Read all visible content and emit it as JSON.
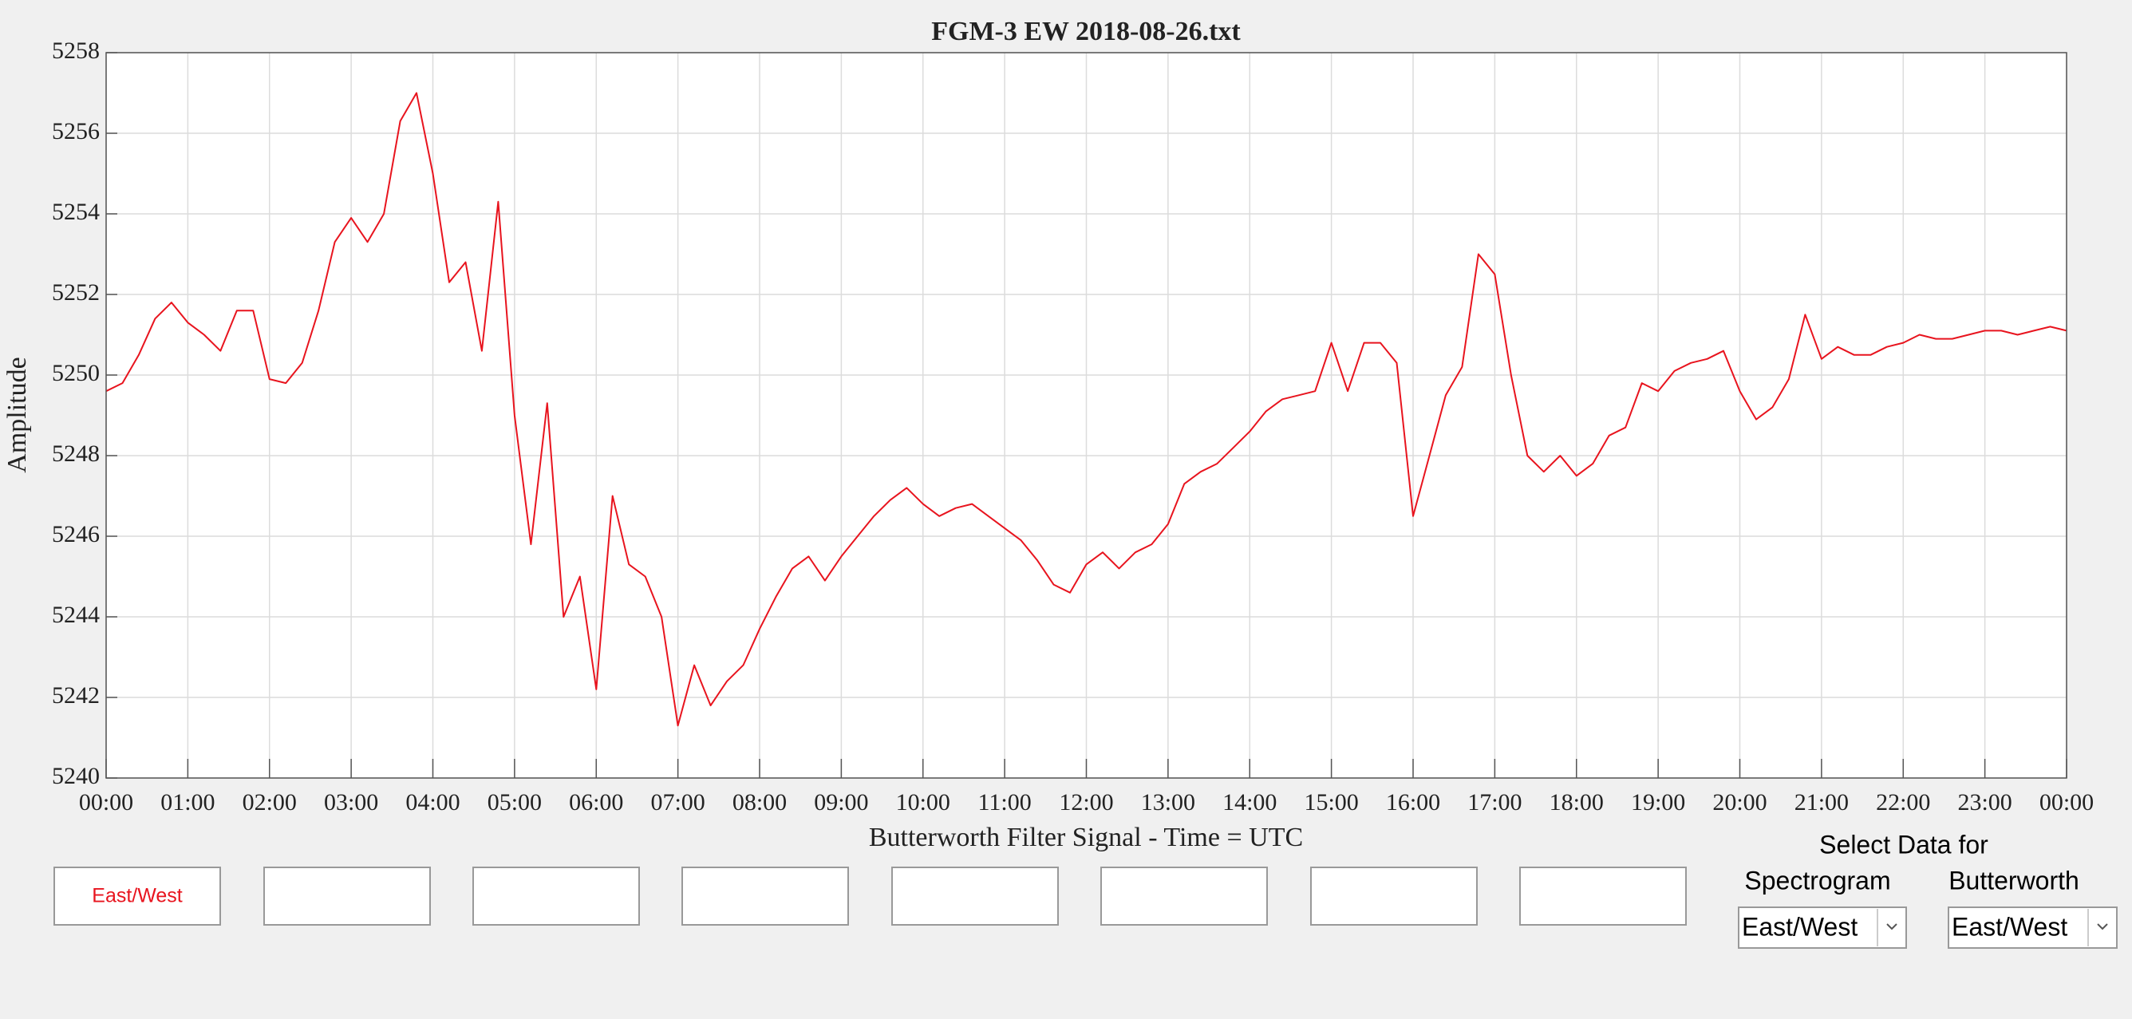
{
  "chart_data": {
    "type": "line",
    "title": "FGM-3 EW 2018-08-26.txt",
    "xlabel": "Butterworth Filter Signal - Time = UTC",
    "ylabel": "Amplitude",
    "x": [
      0,
      0.2,
      0.4,
      0.6,
      0.8,
      1,
      1.2,
      1.4,
      1.6,
      1.8,
      2,
      2.2,
      2.4,
      2.6,
      2.8,
      3,
      3.2,
      3.4,
      3.6,
      3.8,
      4,
      4.2,
      4.4,
      4.6,
      4.8,
      5,
      5.2,
      5.4,
      5.6,
      5.8,
      6,
      6.2,
      6.4,
      6.6,
      6.8,
      7,
      7.2,
      7.4,
      7.6,
      7.8,
      8,
      8.2,
      8.4,
      8.6,
      8.8,
      9,
      9.2,
      9.4,
      9.6,
      9.8,
      10,
      10.2,
      10.4,
      10.6,
      10.8,
      11,
      11.2,
      11.4,
      11.6,
      11.8,
      12,
      12.2,
      12.4,
      12.6,
      12.8,
      13,
      13.2,
      13.4,
      13.6,
      13.8,
      14,
      14.2,
      14.4,
      14.6,
      14.8,
      15,
      15.2,
      15.4,
      15.6,
      15.8,
      16,
      16.2,
      16.4,
      16.6,
      16.8,
      17,
      17.2,
      17.4,
      17.6,
      17.8,
      18,
      18.2,
      18.4,
      18.6,
      18.8,
      19,
      19.2,
      19.4,
      19.6,
      19.8,
      20,
      20.2,
      20.4,
      20.6,
      20.8,
      21,
      21.2,
      21.4,
      21.6,
      21.8,
      22,
      22.2,
      22.4,
      22.6,
      22.8,
      23,
      23.2,
      23.4,
      23.6,
      23.8,
      24
    ],
    "series": [
      {
        "color": "#e8141e",
        "values": [
          5249.6,
          5249.8,
          5250.5,
          5251.4,
          5251.8,
          5251.3,
          5251.0,
          5250.6,
          5251.6,
          5251.6,
          5249.9,
          5249.8,
          5250.3,
          5251.6,
          5253.3,
          5253.9,
          5253.3,
          5254.0,
          5256.3,
          5257.0,
          5255.0,
          5252.3,
          5252.8,
          5250.6,
          5254.3,
          5249.0,
          5245.8,
          5249.3,
          5244.0,
          5245.0,
          5242.2,
          5247.0,
          5245.3,
          5245.0,
          5244.0,
          5241.3,
          5242.8,
          5241.8,
          5242.4,
          5242.8,
          5243.7,
          5244.5,
          5245.2,
          5245.5,
          5244.9,
          5245.5,
          5246.0,
          5246.5,
          5246.9,
          5247.2,
          5246.8,
          5246.5,
          5246.7,
          5246.8,
          5246.5,
          5246.2,
          5245.9,
          5245.4,
          5244.8,
          5244.6,
          5245.3,
          5245.6,
          5245.2,
          5245.6,
          5245.8,
          5246.3,
          5247.3,
          5247.6,
          5247.8,
          5248.2,
          5248.6,
          5249.1,
          5249.4,
          5249.5,
          5249.6,
          5250.8,
          5249.6,
          5250.8,
          5250.8,
          5250.3,
          5246.5,
          5248.0,
          5249.5,
          5250.2,
          5253.0,
          5252.5,
          5250.0,
          5248.0,
          5247.6,
          5248.0,
          5247.5,
          5247.8,
          5248.5,
          5248.7,
          5249.8,
          5249.6,
          5250.1,
          5250.3,
          5250.4,
          5250.6,
          5249.6,
          5248.9,
          5249.2,
          5249.9,
          5251.5,
          5250.4,
          5250.7,
          5250.5,
          5250.5,
          5250.7,
          5250.8,
          5251.0,
          5250.9,
          5250.9,
          5251.0,
          5251.1,
          5251.1,
          5251.0,
          5251.1,
          5251.2,
          5251.1
        ]
      }
    ],
    "xlim": [
      0,
      24
    ],
    "xticks": [
      {
        "value": 0,
        "label": "00:00"
      },
      {
        "value": 1,
        "label": "01:00"
      },
      {
        "value": 2,
        "label": "02:00"
      },
      {
        "value": 3,
        "label": "03:00"
      },
      {
        "value": 4,
        "label": "04:00"
      },
      {
        "value": 5,
        "label": "05:00"
      },
      {
        "value": 6,
        "label": "06:00"
      },
      {
        "value": 7,
        "label": "07:00"
      },
      {
        "value": 8,
        "label": "08:00"
      },
      {
        "value": 9,
        "label": "09:00"
      },
      {
        "value": 10,
        "label": "10:00"
      },
      {
        "value": 11,
        "label": "11:00"
      },
      {
        "value": 12,
        "label": "12:00"
      },
      {
        "value": 13,
        "label": "13:00"
      },
      {
        "value": 14,
        "label": "14:00"
      },
      {
        "value": 15,
        "label": "15:00"
      },
      {
        "value": 16,
        "label": "16:00"
      },
      {
        "value": 17,
        "label": "17:00"
      },
      {
        "value": 18,
        "label": "18:00"
      },
      {
        "value": 19,
        "label": "19:00"
      },
      {
        "value": 20,
        "label": "20:00"
      },
      {
        "value": 21,
        "label": "21:00"
      },
      {
        "value": 22,
        "label": "22:00"
      },
      {
        "value": 23,
        "label": "23:00"
      },
      {
        "value": 24,
        "label": "00:00"
      }
    ],
    "ylim": [
      5240,
      5258
    ],
    "yticks": [
      5240,
      5242,
      5244,
      5246,
      5248,
      5250,
      5252,
      5254,
      5256,
      5258
    ],
    "grid": true
  },
  "buttons": [
    "East/West"
  ],
  "controls": {
    "heading": "Select Data for",
    "spectrogram": {
      "label": "Spectrogram",
      "value": "East/West"
    },
    "butterworth": {
      "label": "Butterworth",
      "value": "East/West"
    }
  }
}
